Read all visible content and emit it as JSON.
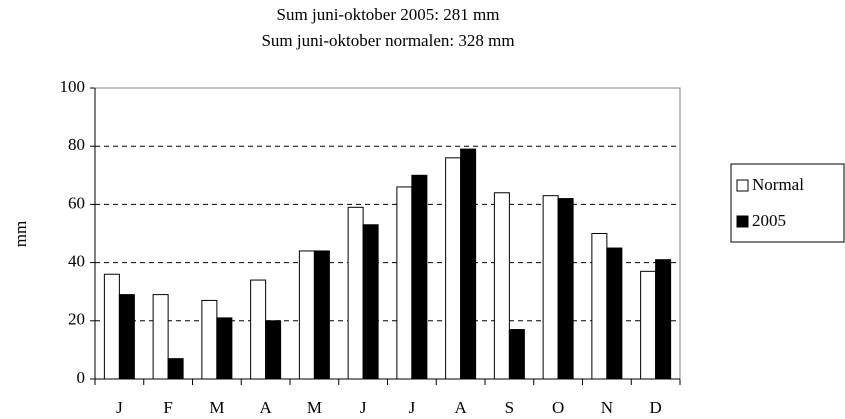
{
  "chart_data": {
    "type": "bar",
    "title": "Sum juni-oktober 2005: 281 mm",
    "subtitle": "Sum juni-oktober normalen: 328 mm",
    "y_label": "mm",
    "categories": [
      "J",
      "F",
      "M",
      "A",
      "M",
      "J",
      "J",
      "A",
      "S",
      "O",
      "N",
      "D"
    ],
    "series": [
      {
        "name": "Normal",
        "color": "#ffffff",
        "values": [
          36,
          29,
          27,
          34,
          44,
          59,
          66,
          76,
          64,
          63,
          50,
          37
        ]
      },
      {
        "name": "2005",
        "color": "#000000",
        "values": [
          29,
          7,
          21,
          20,
          44,
          53,
          70,
          79,
          17,
          62,
          45,
          41
        ]
      }
    ],
    "ylim": [
      0,
      100
    ],
    "yticks": [
      0,
      20,
      40,
      60,
      80,
      100
    ],
    "grid": true,
    "legend": "right"
  }
}
